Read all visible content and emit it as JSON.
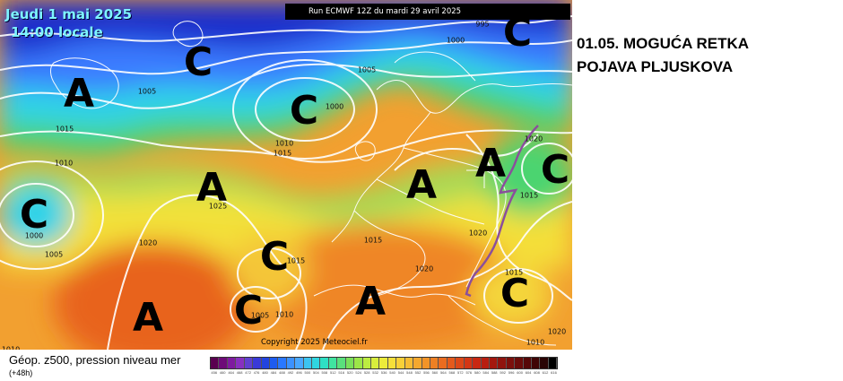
{
  "header": {
    "date": "Jeudi 1 mai 2025",
    "time": "14:00 locale",
    "run": "Run ECMWF 12Z du mardi 29 avril 2025"
  },
  "map": {
    "copyright": "Copyright 2025 Meteociel.fr",
    "pressure_centers": [
      {
        "label": "A",
        "kind": "high"
      },
      {
        "label": "A",
        "kind": "high"
      },
      {
        "label": "A",
        "kind": "high"
      },
      {
        "label": "A",
        "kind": "high"
      },
      {
        "label": "A",
        "kind": "high"
      },
      {
        "label": "A",
        "kind": "high"
      },
      {
        "label": "C",
        "kind": "low"
      },
      {
        "label": "C",
        "kind": "low"
      },
      {
        "label": "C",
        "kind": "low"
      },
      {
        "label": "C",
        "kind": "low"
      },
      {
        "label": "C",
        "kind": "low"
      },
      {
        "label": "C",
        "kind": "low"
      },
      {
        "label": "C",
        "kind": "low"
      }
    ],
    "isobar_labels": [
      "995",
      "1000",
      "1005",
      "1005",
      "1015",
      "1000",
      "1010",
      "1015",
      "1010",
      "1020",
      "1015",
      "1025",
      "1000",
      "1005",
      "1020",
      "1015",
      "1010",
      "1005",
      "1010",
      "1015",
      "1020",
      "1020",
      "1015",
      "1010",
      "1020",
      "1010",
      "1015"
    ],
    "colors": {
      "deep_blue": "#1a2ecc",
      "blue": "#3b7bff",
      "cyan": "#2fd3e8",
      "green": "#5bdc6a",
      "yellow": "#f4e23a",
      "orange": "#f3a02a",
      "red_orange": "#e8641e"
    }
  },
  "annotation": {
    "line1": "01.05. MOGUĆA RETKA",
    "line2": "POJAVA PLJUSKOVA"
  },
  "legend": {
    "title": "Géop. z500, pression niveau mer",
    "subtitle": "(+48h)",
    "ticks": [
      "456",
      "460",
      "464",
      "468",
      "472",
      "476",
      "480",
      "484",
      "488",
      "492",
      "496",
      "500",
      "504",
      "508",
      "512",
      "516",
      "520",
      "524",
      "528",
      "532",
      "536",
      "540",
      "544",
      "548",
      "552",
      "556",
      "560",
      "564",
      "568",
      "572",
      "576",
      "580",
      "584",
      "588",
      "592",
      "596",
      "600",
      "604",
      "608",
      "612",
      "616"
    ],
    "colors": [
      "#5a0050",
      "#6e0a78",
      "#7f1aa0",
      "#8830c0",
      "#6040d0",
      "#3a3ad8",
      "#2244e0",
      "#1e5cf0",
      "#2a78ff",
      "#3c92ff",
      "#4aa8ff",
      "#3cc4f0",
      "#30d6e0",
      "#2ee0c4",
      "#40e4a0",
      "#5ae07c",
      "#7ae05a",
      "#9ce648",
      "#bcec40",
      "#d8ee3c",
      "#ecec3a",
      "#f6e03a",
      "#f8d038",
      "#f6bc34",
      "#f4a82e",
      "#f29428",
      "#ee8024",
      "#ea6c20",
      "#e45a1c",
      "#dc4818",
      "#d43614",
      "#c82812",
      "#b81e10",
      "#a4180e",
      "#90140e",
      "#7c100c",
      "#6a0c0a",
      "#560808",
      "#400606",
      "#2a0404",
      "#000000"
    ]
  }
}
